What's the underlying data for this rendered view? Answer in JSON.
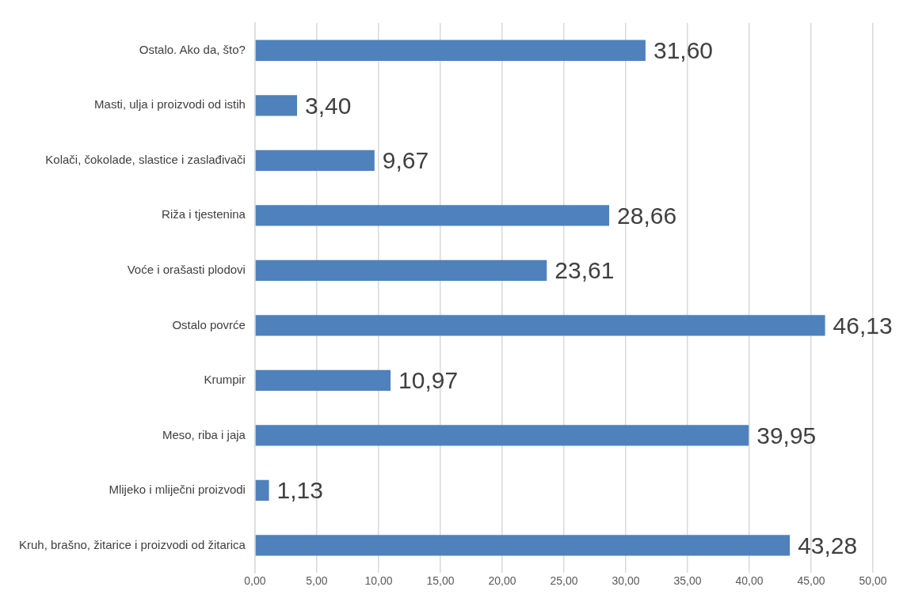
{
  "chart_data": {
    "type": "bar",
    "orientation": "horizontal",
    "categories": [
      "Ostalo. Ako da, što?",
      "Masti, ulja i proizvodi od istih",
      "Kolači, čokolade, slastice i zaslađivači",
      "Riža i tjestenina",
      "Voće i orašasti plodovi",
      "Ostalo povrće",
      "Krumpir",
      "Meso, riba i jaja",
      "Mlijeko i mliječni proizvodi",
      "Kruh, brašno, žitarice i proizvodi od žitarica"
    ],
    "values": [
      31.6,
      3.4,
      9.67,
      28.66,
      23.61,
      46.13,
      10.97,
      39.95,
      1.13,
      43.28
    ],
    "value_labels": [
      "31,60",
      "3,40",
      "9,67",
      "28,66",
      "23,61",
      "46,13",
      "10,97",
      "39,95",
      "1,13",
      "43,28"
    ],
    "color": "#4f81bd",
    "xlim": [
      0,
      50
    ],
    "xticks": [
      {
        "value": 0,
        "label": "0,00"
      },
      {
        "value": 5,
        "label": "5,00"
      },
      {
        "value": 10,
        "label": "10,00"
      },
      {
        "value": 15,
        "label": "15,00"
      },
      {
        "value": 20,
        "label": "20,00"
      },
      {
        "value": 25,
        "label": "25,00"
      },
      {
        "value": 30,
        "label": "30,00"
      },
      {
        "value": 35,
        "label": "35,00"
      },
      {
        "value": 40,
        "label": "40,00"
      },
      {
        "value": 45,
        "label": "45,00"
      },
      {
        "value": 50,
        "label": "50,00"
      }
    ],
    "grid": "x"
  }
}
